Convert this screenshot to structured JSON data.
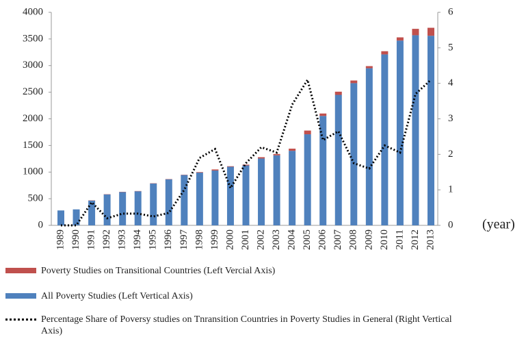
{
  "chart_data": {
    "type": "bar",
    "categories": [
      "1989",
      "1990",
      "1991",
      "1992",
      "1993",
      "1994",
      "1995",
      "1996",
      "1997",
      "1998",
      "1999",
      "2000",
      "2001",
      "2002",
      "2003",
      "2004",
      "2005",
      "2006",
      "2007",
      "2008",
      "2009",
      "2010",
      "2011",
      "2012",
      "2013"
    ],
    "series": [
      {
        "name": "Poverty Studies on Transitional Countries (Left Vercial Axis)",
        "color": "#c0504d",
        "values": [
          0,
          0,
          5,
          5,
          5,
          5,
          5,
          5,
          5,
          10,
          20,
          10,
          15,
          25,
          25,
          40,
          70,
          45,
          60,
          50,
          40,
          60,
          60,
          120,
          150
        ]
      },
      {
        "name": "All Poverty Studies (Left Vertical Axis)",
        "color": "#4f81bd",
        "values": [
          280,
          300,
          465,
          580,
          625,
          640,
          785,
          865,
          945,
          990,
          1030,
          1100,
          1125,
          1255,
          1315,
          1400,
          1710,
          2055,
          2450,
          2670,
          2950,
          3210,
          3470,
          3570,
          3560
        ]
      },
      {
        "name": "Percentage Share of Poversy studies on Tnransition Countries in Poverty Studies in General (Right Vertical Axis)",
        "color": "#000000",
        "type": "line",
        "axis": "y2",
        "values": [
          0,
          0,
          0.65,
          0.2,
          0.33,
          0.33,
          0.25,
          0.35,
          1.0,
          1.9,
          2.15,
          1.05,
          1.75,
          2.2,
          2.05,
          3.4,
          4.1,
          2.4,
          2.65,
          1.75,
          1.6,
          2.25,
          2.05,
          3.7,
          4.1
        ]
      }
    ],
    "x_label": "(year)",
    "ylim": [
      0,
      4000
    ],
    "yticks": [
      0,
      500,
      1000,
      1500,
      2000,
      2500,
      3000,
      3500,
      4000
    ],
    "y2lim": [
      0,
      6
    ],
    "y2ticks": [
      0,
      1,
      2,
      3,
      4,
      5,
      6
    ],
    "grid": false
  }
}
